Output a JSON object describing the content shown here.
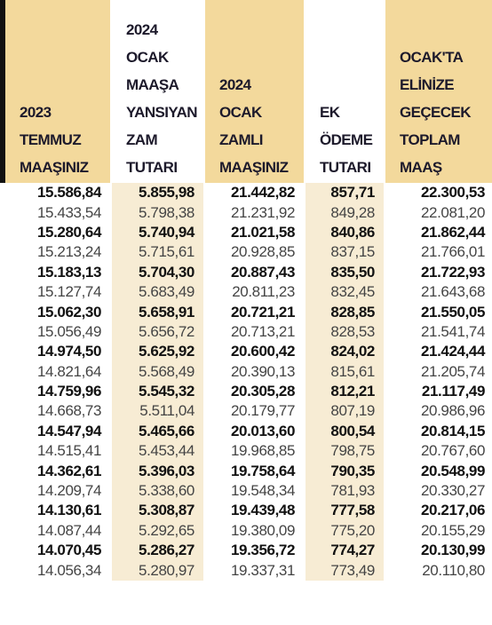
{
  "table": {
    "headers": [
      [
        "2023",
        "TEMMUZ",
        "MAAŞINIZ"
      ],
      [
        "2024",
        "OCAK",
        "MAAŞA",
        "YANSIYAN",
        "ZAM",
        "TUTARI"
      ],
      [
        "2024",
        "OCAK",
        "ZAMLI",
        "MAAŞINIZ"
      ],
      [
        "EK",
        "ÖDEME",
        "TUTARI"
      ],
      [
        "OCAK'TA",
        "ELİNİZE",
        "GEÇECEK",
        "TOPLAM",
        "MAAŞ"
      ]
    ],
    "rows": [
      [
        "15.586,84",
        "5.855,98",
        "21.442,82",
        "857,71",
        "22.300,53"
      ],
      [
        "15.433,54",
        "5.798,38",
        "21.231,92",
        "849,28",
        "22.081,20"
      ],
      [
        "15.280,64",
        "5.740,94",
        "21.021,58",
        "840,86",
        "21.862,44"
      ],
      [
        "15.213,24",
        "5.715,61",
        "20.928,85",
        "837,15",
        "21.766,01"
      ],
      [
        "15.183,13",
        "5.704,30",
        "20.887,43",
        "835,50",
        "21.722,93"
      ],
      [
        "15.127,74",
        "5.683,49",
        "20.811,23",
        "832,45",
        "21.643,68"
      ],
      [
        "15.062,30",
        "5.658,91",
        "20.721,21",
        "828,85",
        "21.550,05"
      ],
      [
        "15.056,49",
        "5.656,72",
        "20.713,21",
        "828,53",
        "21.541,74"
      ],
      [
        "14.974,50",
        "5.625,92",
        "20.600,42",
        "824,02",
        "21.424,44"
      ],
      [
        "14.821,64",
        "5.568,49",
        "20.390,13",
        "815,61",
        "21.205,74"
      ],
      [
        "14.759,96",
        "5.545,32",
        "20.305,28",
        "812,21",
        "21.117,49"
      ],
      [
        "14.668,73",
        "5.511,04",
        "20.179,77",
        "807,19",
        "20.986,96"
      ],
      [
        "14.547,94",
        "5.465,66",
        "20.013,60",
        "800,54",
        "20.814,15"
      ],
      [
        "14.515,41",
        "5.453,44",
        "19.968,85",
        "798,75",
        "20.767,60"
      ],
      [
        "14.362,61",
        "5.396,03",
        "19.758,64",
        "790,35",
        "20.548,99"
      ],
      [
        "14.209,74",
        "5.338,60",
        "19.548,34",
        "781,93",
        "20.330,27"
      ],
      [
        "14.130,61",
        "5.308,87",
        "19.439,48",
        "777,58",
        "20.217,06"
      ],
      [
        "14.087,44",
        "5.292,65",
        "19.380,09",
        "775,20",
        "20.155,29"
      ],
      [
        "14.070,45",
        "5.286,27",
        "19.356,72",
        "774,27",
        "20.130,99"
      ],
      [
        "14.056,34",
        "5.280,97",
        "19.337,31",
        "773,49",
        "20.110,80"
      ]
    ]
  }
}
